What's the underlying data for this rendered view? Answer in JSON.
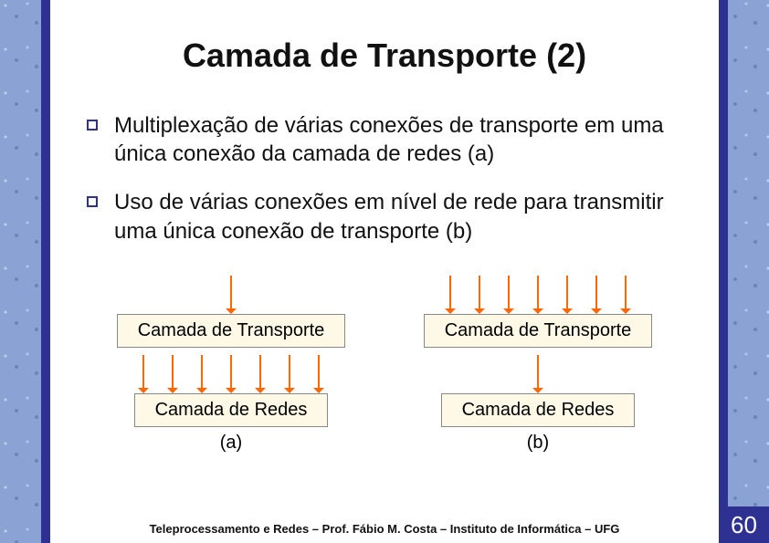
{
  "title": "Camada de Transporte (2)",
  "bullets": [
    "Multiplexação de várias conexões de transporte em uma única conexão da camada de redes (a)",
    "Uso de várias conexões em nível de rede para transmitir uma única conexão de transporte (b)"
  ],
  "diagram": {
    "box_bg": "#fdf9e6",
    "box_border": "#888888",
    "arrow_color": "#ff6600",
    "arrow_length": 42,
    "arrow_width": 2,
    "arrow_head": 6,
    "a": {
      "top_arrows": 1,
      "mid_arrows": 7,
      "box1": "Camada de Transporte",
      "box2": "Camada de Redes",
      "caption": "(a)"
    },
    "b": {
      "top_arrows": 7,
      "mid_arrows": 1,
      "box1": "Camada de Transporte",
      "box2": "Camada de Redes",
      "caption": "(b)"
    }
  },
  "footer": "Teleprocessamento e Redes – Prof. Fábio M. Costa – Instituto de Informática – UFG",
  "page_number": "60",
  "colors": {
    "accent": "#2e3192",
    "side_texture": "#8aa3d4",
    "text": "#111111",
    "bg": "#ffffff"
  }
}
